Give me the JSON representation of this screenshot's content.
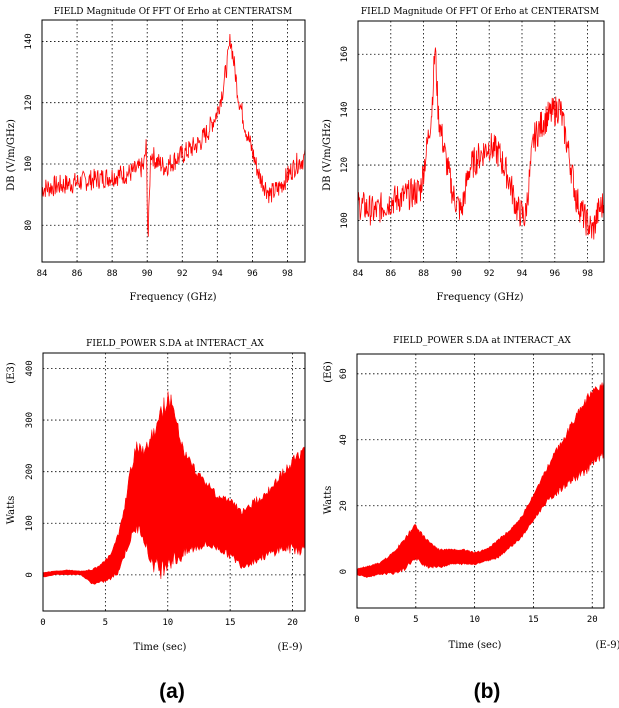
{
  "chart_data": [
    {
      "id": "fft-a",
      "type": "line",
      "title": "FIELD Magnitude Of FFT Of Erho at CENTERATSM",
      "xlabel": "Frequency (GHz)",
      "ylabel": "DB (V/m/GHz)",
      "xlim": [
        84,
        99
      ],
      "ylim": [
        68,
        147
      ],
      "xticks": [
        84,
        86,
        88,
        90,
        92,
        94,
        96,
        98
      ],
      "yticks": [
        80,
        100,
        120,
        140
      ],
      "grid": true,
      "series": [
        {
          "x": [
            84,
            85,
            86,
            87,
            88,
            89,
            89.8,
            89.95,
            90.05,
            90.2,
            90.5,
            91,
            92,
            93,
            93.5,
            94,
            94.3,
            94.6,
            94.75,
            94.9,
            95.2,
            95.6,
            96,
            96.4,
            97,
            97.5,
            98,
            98.5,
            99
          ],
          "y": [
            92,
            93,
            94,
            95,
            96,
            97,
            99,
            106,
            74,
            104,
            101,
            99,
            103,
            107,
            111,
            117,
            124,
            134,
            141,
            135,
            122,
            112,
            104,
            96,
            90,
            92,
            96,
            100,
            102
          ]
        }
      ]
    },
    {
      "id": "fft-b",
      "type": "line",
      "title": "FIELD Magnitude Of FFT Of Erho at CENTERATSM",
      "xlabel": "Frequency (GHz)",
      "ylabel": "DB (V/m/GHz)",
      "xlim": [
        84,
        99
      ],
      "ylim": [
        85,
        172
      ],
      "xticks": [
        84,
        86,
        88,
        90,
        92,
        94,
        96,
        98
      ],
      "yticks": [
        100,
        120,
        140,
        160
      ],
      "grid": true,
      "series": [
        {
          "x": [
            84,
            85,
            86,
            87,
            87.8,
            88.2,
            88.5,
            88.7,
            88.9,
            89.3,
            89.8,
            90.3,
            90.8,
            91.5,
            92,
            92.6,
            93.2,
            93.7,
            94.2,
            94.7,
            95.3,
            95.9,
            96.3,
            96.8,
            97.3,
            97.8,
            98.3,
            98.7,
            99
          ],
          "y": [
            106,
            103,
            107,
            109,
            111,
            126,
            140,
            163,
            138,
            124,
            109,
            103,
            119,
            124,
            127,
            124,
            115,
            104,
            101,
            129,
            136,
            139,
            141,
            126,
            108,
            101,
            96,
            104,
            106
          ]
        }
      ]
    },
    {
      "id": "power-a",
      "type": "area",
      "title": "FIELD_POWER S.DA at INTERACT_AX",
      "xlabel": "Time (sec)",
      "x_exponent_label": "(E-9)",
      "ylabel": "Watts",
      "y_exponent_label": "(E3)",
      "xlim": [
        0,
        21
      ],
      "ylim": [
        -70,
        430
      ],
      "xticks": [
        0,
        5,
        10,
        15,
        20
      ],
      "yticks": [
        0,
        100,
        200,
        300,
        400
      ],
      "grid": true,
      "series": [
        {
          "x": [
            0,
            1,
            2,
            3,
            4,
            5,
            5.5,
            6,
            6.5,
            7,
            7.5,
            8,
            8.5,
            9,
            9.5,
            10,
            10.5,
            11,
            11.5,
            12,
            13,
            14,
            15,
            16,
            17,
            18,
            19,
            20,
            21
          ],
          "upper": [
            5,
            8,
            10,
            8,
            12,
            30,
            45,
            80,
            130,
            210,
            260,
            250,
            270,
            300,
            330,
            375,
            330,
            280,
            240,
            220,
            190,
            160,
            150,
            130,
            150,
            170,
            200,
            230,
            260
          ],
          "lower": [
            -5,
            0,
            0,
            0,
            -20,
            -15,
            -10,
            0,
            30,
            60,
            80,
            70,
            20,
            0,
            -10,
            10,
            10,
            20,
            30,
            40,
            50,
            45,
            30,
            10,
            20,
            30,
            40,
            40,
            35
          ]
        }
      ]
    },
    {
      "id": "power-b",
      "type": "area",
      "title": "FIELD_POWER S.DA at INTERACT_AX",
      "xlabel": "Time (sec)",
      "x_exponent_label": "(E-9)",
      "ylabel": "Watts",
      "y_exponent_label": "(E6)",
      "xlim": [
        0,
        21
      ],
      "ylim": [
        -11,
        66
      ],
      "xticks": [
        0,
        5,
        10,
        15,
        20
      ],
      "yticks": [
        0,
        20,
        40,
        60
      ],
      "grid": true,
      "series": [
        {
          "x": [
            0,
            1,
            2,
            3,
            4,
            4.5,
            5,
            5.5,
            6,
            7,
            8,
            9,
            10,
            11,
            12,
            13,
            14,
            15,
            16,
            17,
            18,
            19,
            20,
            21
          ],
          "upper": [
            1,
            2,
            3,
            6,
            10,
            13,
            15,
            12,
            10,
            7,
            7,
            7,
            6,
            7,
            10,
            13,
            17,
            24,
            31,
            38,
            44,
            51,
            56,
            58
          ],
          "lower": [
            -1,
            -2,
            -1,
            -1,
            0,
            2,
            3,
            2,
            1,
            1,
            2,
            2,
            2,
            3,
            4,
            7,
            10,
            15,
            20,
            23,
            26,
            28,
            31,
            34
          ]
        }
      ]
    }
  ],
  "panel_labels": [
    "(a)",
    "(b)"
  ]
}
